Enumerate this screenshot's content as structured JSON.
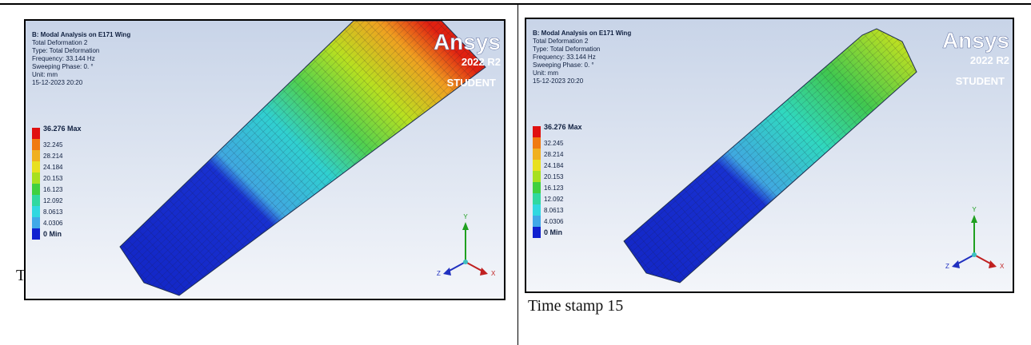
{
  "panels": [
    {
      "header": [
        "B: Modal Analysis on E171 Wing",
        "Total Deformation 2",
        "Type: Total Deformation",
        "Frequency: 33.144 Hz",
        "Sweeping Phase: 0. °",
        "Unit: mm",
        "15-12-2023 20:20"
      ],
      "legend": [
        "36.276 Max",
        "32.245",
        "28.214",
        "24.184",
        "20.153",
        "16.123",
        "12.092",
        "8.0613",
        "4.0306",
        "0 Min"
      ],
      "logo": "Ansys",
      "version": "2022 R2",
      "edition": "STUDENT",
      "axes": {
        "x": "X",
        "y": "Y",
        "z": "Z"
      },
      "caption": "T"
    },
    {
      "header": [
        "B: Modal Analysis on E171 Wing",
        "Total Deformation 2",
        "Type: Total Deformation",
        "Frequency: 33.144 Hz",
        "Sweeping Phase: 0. °",
        "Unit: mm",
        "15-12-2023 20:20"
      ],
      "legend": [
        "36.276 Max",
        "32.245",
        "28.214",
        "24.184",
        "20.153",
        "16.123",
        "12.092",
        "8.0613",
        "4.0306",
        "0 Min"
      ],
      "logo": "Ansys",
      "version": "2022 R2",
      "edition": "STUDENT",
      "axes": {
        "x": "X",
        "y": "Y",
        "z": "Z"
      },
      "caption": "Time stamp 15"
    }
  ]
}
